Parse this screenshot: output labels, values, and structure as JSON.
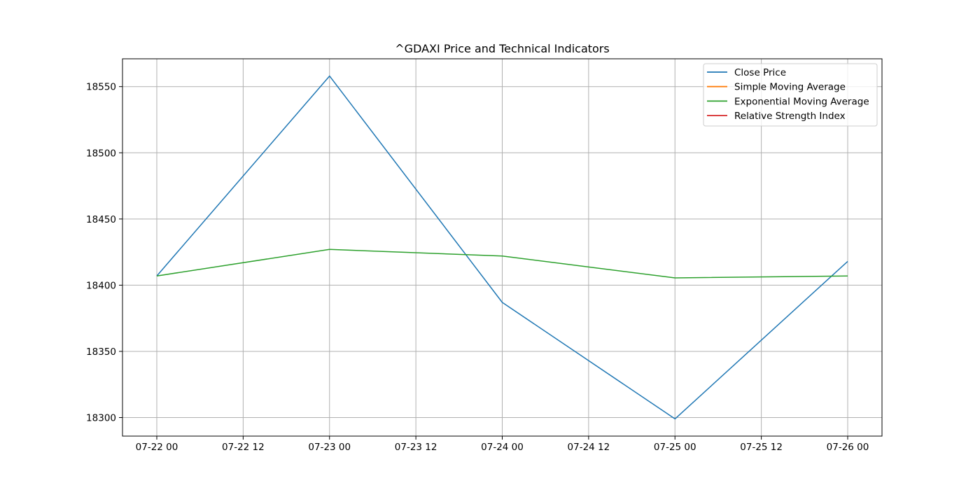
{
  "chart_data": {
    "type": "line",
    "title": "^GDAXI Price and Technical Indicators",
    "xlabel": "",
    "ylabel": "",
    "x": [
      "2024-07-22",
      "2024-07-23",
      "2024-07-24",
      "2024-07-25",
      "2024-07-26"
    ],
    "x_ticks": [
      "07-22 00",
      "07-22 12",
      "07-23 00",
      "07-23 12",
      "07-24 00",
      "07-24 12",
      "07-25 00",
      "07-25 12",
      "07-26 00"
    ],
    "y_ticks": [
      18300,
      18350,
      18400,
      18450,
      18500,
      18550
    ],
    "ylim": [
      18286,
      18571
    ],
    "grid": true,
    "legend_position": "top-right",
    "series": [
      {
        "name": "Close Price",
        "color": "#1f77b4",
        "values": [
          18407,
          18558,
          18387,
          18299,
          18418
        ]
      },
      {
        "name": "Simple Moving Average",
        "color": "#ff7f0e",
        "values": [
          null,
          null,
          null,
          null,
          null
        ]
      },
      {
        "name": "Exponential Moving Average",
        "color": "#2ca02c",
        "values": [
          18407,
          18427,
          18422,
          18405.5,
          18407
        ]
      },
      {
        "name": "Relative Strength Index",
        "color": "#d62728",
        "values": [
          null,
          null,
          null,
          null,
          null
        ]
      }
    ]
  }
}
